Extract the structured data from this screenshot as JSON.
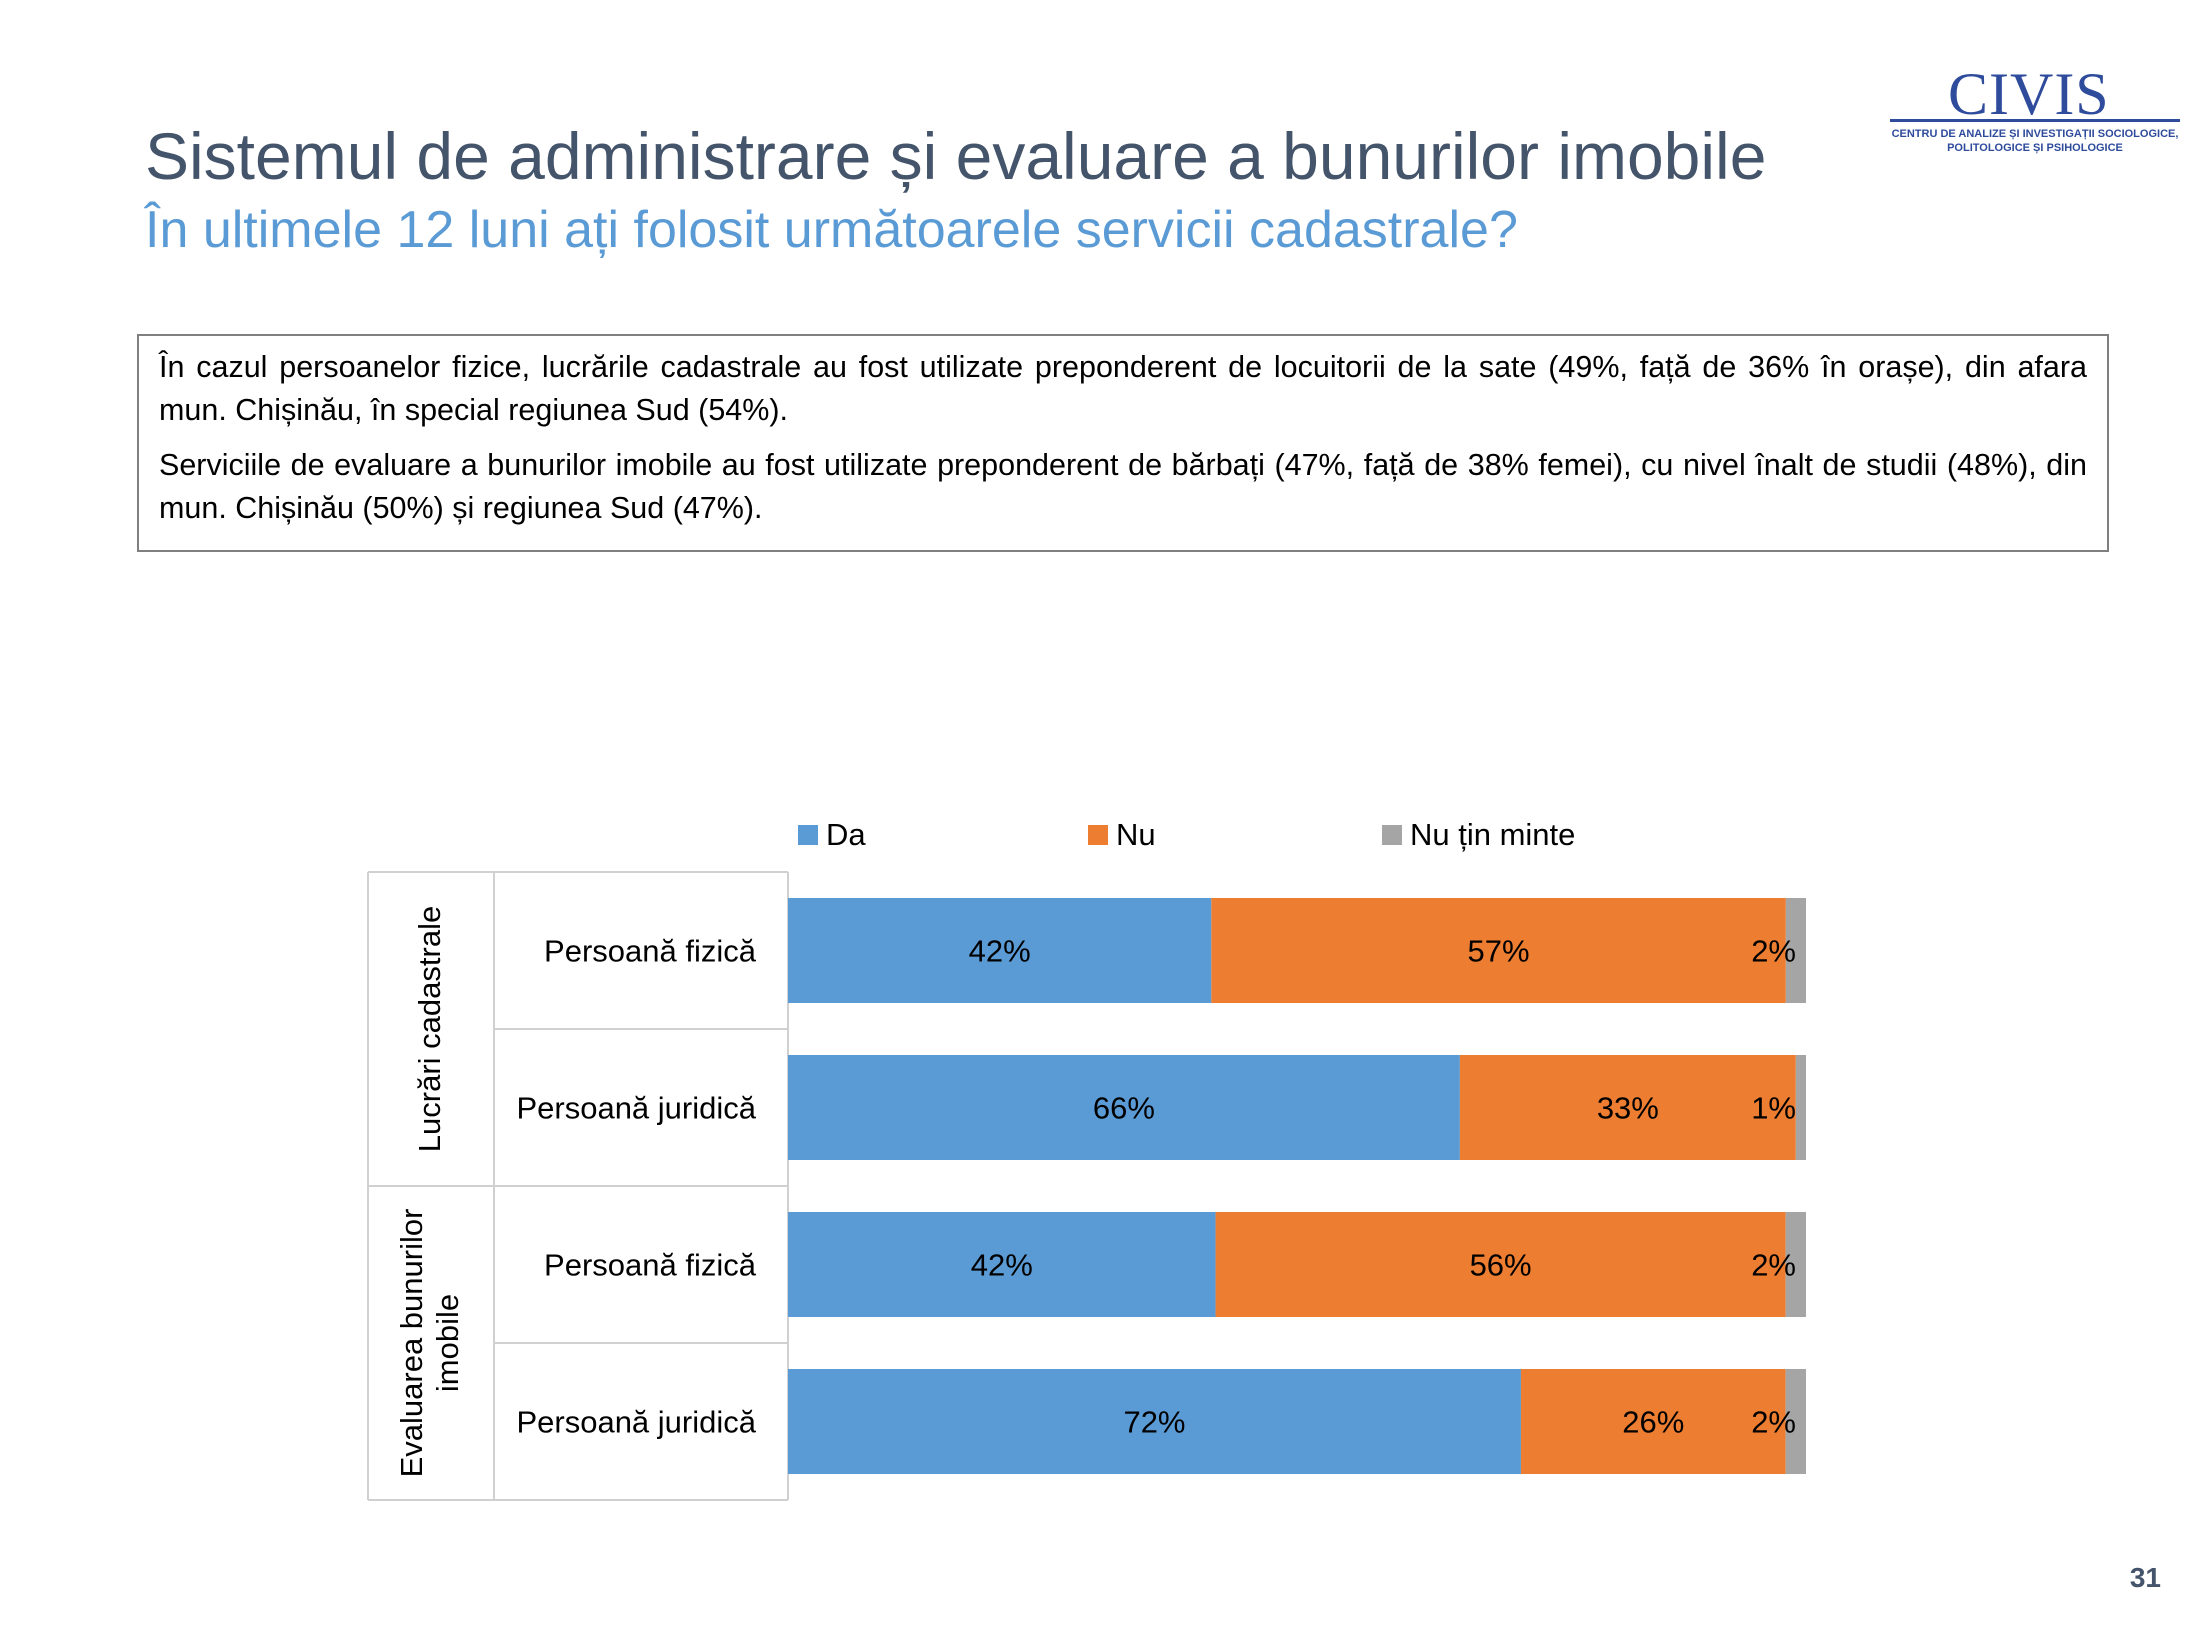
{
  "slide": {
    "title": "Sistemul de administrare și evaluare a bunurilor imobile",
    "subtitle": "În ultimele 12 luni ați folosit următoarele servicii cadastrale?",
    "paragraphs": [
      "În cazul persoanelor fizice, lucrările cadastrale au fost utilizate preponderent de locuitorii de la sate (49%, față de 36% în orașe), din afara mun. Chișinău, în special regiunea Sud (54%).",
      "Serviciile de evaluare a bunurilor imobile au fost utilizate preponderent de bărbați (47%, față de 38% femei), cu nivel înalt de studii (48%), din mun. Chișinău (50%) și regiunea Sud (47%)."
    ],
    "page_number": "31"
  },
  "logo": {
    "word": "CIVIS",
    "tagline_1": "CENTRU DE ANALIZE ȘI INVESTIGAȚII SOCIOLOGICE,",
    "tagline_2": "POLITOLOGICE ȘI PSIHOLOGICE"
  },
  "colors": {
    "Da": "#5b9bd5",
    "Nu": "#ed7d31",
    "Nu țin minte": "#a5a5a5",
    "title": "#44546a",
    "subtitle": "#5b9bd5"
  },
  "chart_data": {
    "type": "bar",
    "orientation": "horizontal",
    "stacked": true,
    "normalized_to_100": true,
    "legend_position": "top",
    "groups": [
      {
        "label": "Lucrări cadastrale",
        "categories": [
          "Persoană fizică",
          "Persoană juridică"
        ]
      },
      {
        "label": "Evaluarea bunurilor imobile",
        "categories": [
          "Persoană fizică",
          "Persoană juridică"
        ]
      }
    ],
    "categories": [
      "Persoană fizică",
      "Persoană juridică",
      "Persoană fizică",
      "Persoană juridică"
    ],
    "series": [
      {
        "name": "Da",
        "values": [
          42,
          66,
          42,
          72
        ],
        "labels": [
          "42%",
          "66%",
          "42%",
          "72%"
        ]
      },
      {
        "name": "Nu",
        "values": [
          57,
          33,
          56,
          26
        ],
        "labels": [
          "57%",
          "33%",
          "56%",
          "26%"
        ]
      },
      {
        "name": "Nu țin minte",
        "values": [
          2,
          1,
          2,
          2
        ],
        "labels": [
          "2%",
          "1%",
          "2%",
          "2%"
        ]
      }
    ]
  }
}
